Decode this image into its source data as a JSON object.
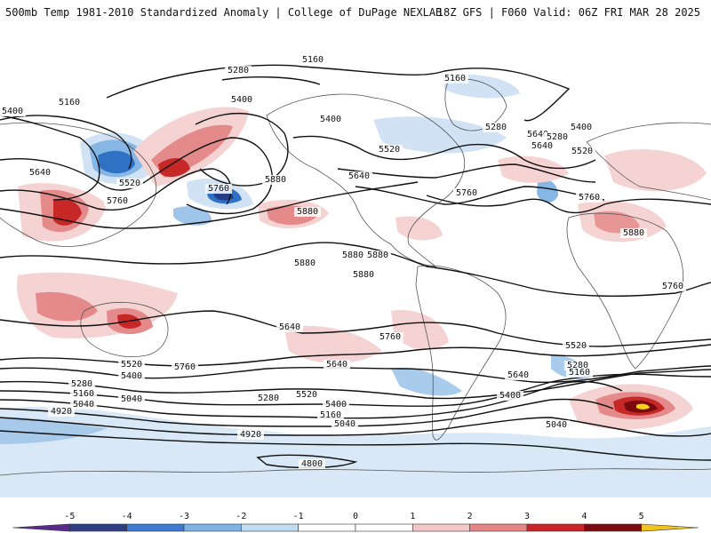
{
  "header": {
    "title": "500mb Temp 1981-2010 Standardized Anomaly | College of DuPage NEXLAB",
    "run_info": "18Z GFS | F060 Valid: 06Z FRI MAR 28 2025"
  },
  "contour_labels": [
    "5160",
    "5280",
    "5400",
    "5160",
    "5160",
    "5400",
    "5400",
    "5280",
    "5520",
    "5640",
    "5520",
    "5280",
    "5640",
    "5400",
    "5520",
    "5760",
    "5640",
    "5760",
    "5880",
    "5760",
    "5640",
    "5760",
    "5880",
    "5880",
    "5880",
    "5880",
    "5880",
    "5880",
    "5760",
    "5640",
    "5520",
    "5400",
    "5280",
    "5160",
    "5040",
    "4920",
    "5760",
    "5640",
    "5520",
    "5400",
    "5280",
    "5160",
    "5040",
    "5640",
    "5400",
    "5760",
    "5520",
    "5280",
    "5160",
    "5040",
    "4920",
    "4800",
    "5040"
  ],
  "colorbar": {
    "ticks": [
      "-5",
      "-4",
      "-3",
      "-2",
      "-1",
      "0",
      "1",
      "2",
      "3",
      "4",
      "5"
    ],
    "colors": [
      "#5a2a8c",
      "#2e3f86",
      "#3b7ad0",
      "#7fb3e6",
      "#c2dcf2",
      "#ffffff",
      "#ffffff",
      "#f4c8c8",
      "#e58585",
      "#c9262a",
      "#7d0a0f",
      "#f2c41b"
    ]
  },
  "colors": {
    "contour": "#111111",
    "border": "#555555",
    "warm_light": "#f6d3d3",
    "warm_mid": "#e48a8a",
    "warm_strong": "#c62828",
    "warm_extreme": "#7a0a10",
    "warm_peak": "#f2d21b",
    "cool_light": "#d0e2f4",
    "cool_mid": "#86b6e4",
    "cool_strong": "#2f72c4",
    "cool_extreme": "#243d8a"
  }
}
